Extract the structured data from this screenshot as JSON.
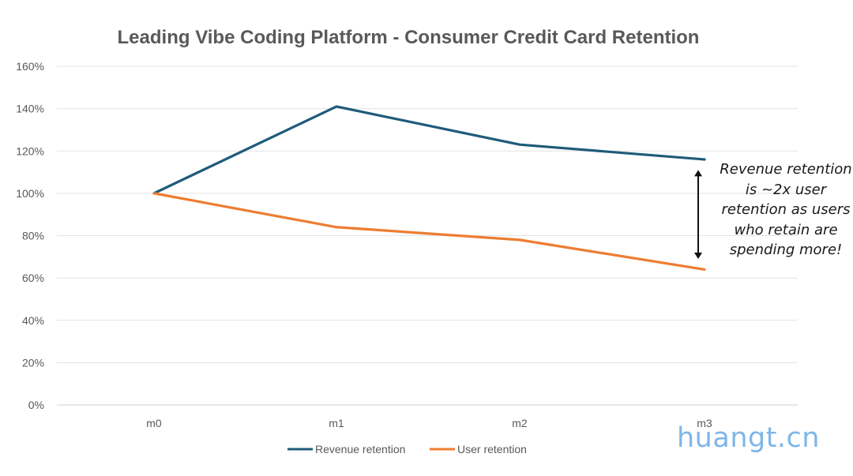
{
  "chart_data": {
    "type": "line",
    "title": "Leading Vibe Coding Platform - Consumer Credit Card Retention",
    "categories": [
      "m0",
      "m1",
      "m2",
      "m3"
    ],
    "series": [
      {
        "name": "Revenue retention",
        "values": [
          100,
          141,
          123,
          116
        ],
        "color": "#1f5b7a"
      },
      {
        "name": "User retention",
        "values": [
          100,
          84,
          78,
          64
        ],
        "color": "#ed7d31"
      }
    ],
    "ylim": [
      0,
      160
    ],
    "yticks": [
      0,
      20,
      40,
      60,
      80,
      100,
      120,
      140,
      160
    ],
    "ytick_labels": [
      "0%",
      "20%",
      "40%",
      "60%",
      "80%",
      "100%",
      "120%",
      "140%",
      "160%"
    ],
    "xlabel": "",
    "ylabel": "",
    "grid": true,
    "legend": "bottom",
    "annotation": {
      "text": "Revenue retention is ~2x user retention as users who retain are spending more!",
      "arrow_between": {
        "category": "m3",
        "from": 111,
        "to": 69
      }
    }
  },
  "watermark": "huangt.cn"
}
